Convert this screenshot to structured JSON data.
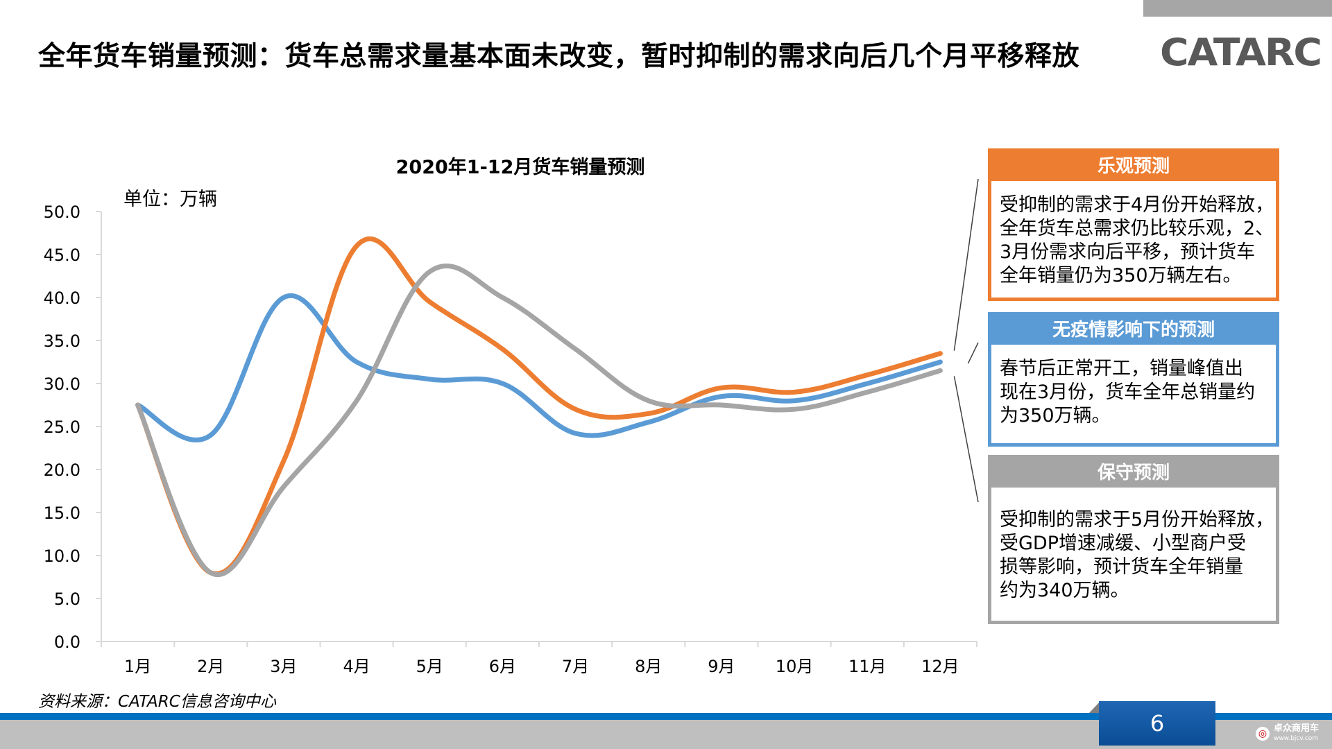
{
  "page": {
    "title": "全年货车销量预测：货车总需求量基本面未改变，暂时抑制的需求向后几个月平移释放",
    "logo": "CATARC",
    "source": "资料来源：CATARC信息咨询中心",
    "page_number": "6",
    "watermark": {
      "name": "卓众商用车",
      "url": "www.bjcv.com"
    }
  },
  "chart_data": {
    "type": "line",
    "title": "2020年1-12月货车销量预测",
    "unit_label": "单位：万辆",
    "categories": [
      "1月",
      "2月",
      "3月",
      "4月",
      "5月",
      "6月",
      "7月",
      "8月",
      "9月",
      "10月",
      "11月",
      "12月"
    ],
    "ylim": [
      0,
      50
    ],
    "yticks": [
      "0.0",
      "5.0",
      "10.0",
      "15.0",
      "20.0",
      "25.0",
      "30.0",
      "35.0",
      "40.0",
      "45.0",
      "50.0"
    ],
    "grid": false,
    "smooth": true,
    "series": [
      {
        "name": "无疫情影响下的预测",
        "color": "#5b9bd5",
        "values": [
          27.5,
          24,
          40,
          32.5,
          30.5,
          30,
          24.2,
          25.5,
          28.5,
          28,
          30,
          32.5
        ]
      },
      {
        "name": "乐观预测",
        "color": "#ed7d31",
        "values": [
          27.5,
          8,
          21,
          46,
          39.5,
          34,
          27,
          26.5,
          29.5,
          29,
          31,
          33.5
        ]
      },
      {
        "name": "保守预测",
        "color": "#a5a5a5",
        "values": [
          27.5,
          8,
          18,
          28,
          43,
          40,
          34,
          28,
          27.5,
          27,
          29,
          31.5
        ]
      }
    ]
  },
  "panels": [
    {
      "id": "optimistic",
      "heading": "乐观预测",
      "color": "#ed7d31",
      "lines": [
        "受抑制的需求于4月份开始释放，",
        "全年货车总需求仍比较乐观，2、",
        "3月份需求向后平移，预计货车",
        "全年销量仍为350万辆左右。"
      ]
    },
    {
      "id": "baseline",
      "heading": "无疫情影响下的预测",
      "color": "#5b9bd5",
      "lines": [
        "春节后正常开工，销量峰值出",
        "现在3月份，货车全年总销量约",
        "为350万辆。"
      ]
    },
    {
      "id": "conservative",
      "heading": "保守预测",
      "color": "#a5a5a5",
      "lines": [
        "受抑制的需求于5月份开始释放，",
        "受GDP增速减缓、小型商户受",
        "损等影响，预计货车全年销量",
        "约为340万辆。"
      ]
    }
  ]
}
